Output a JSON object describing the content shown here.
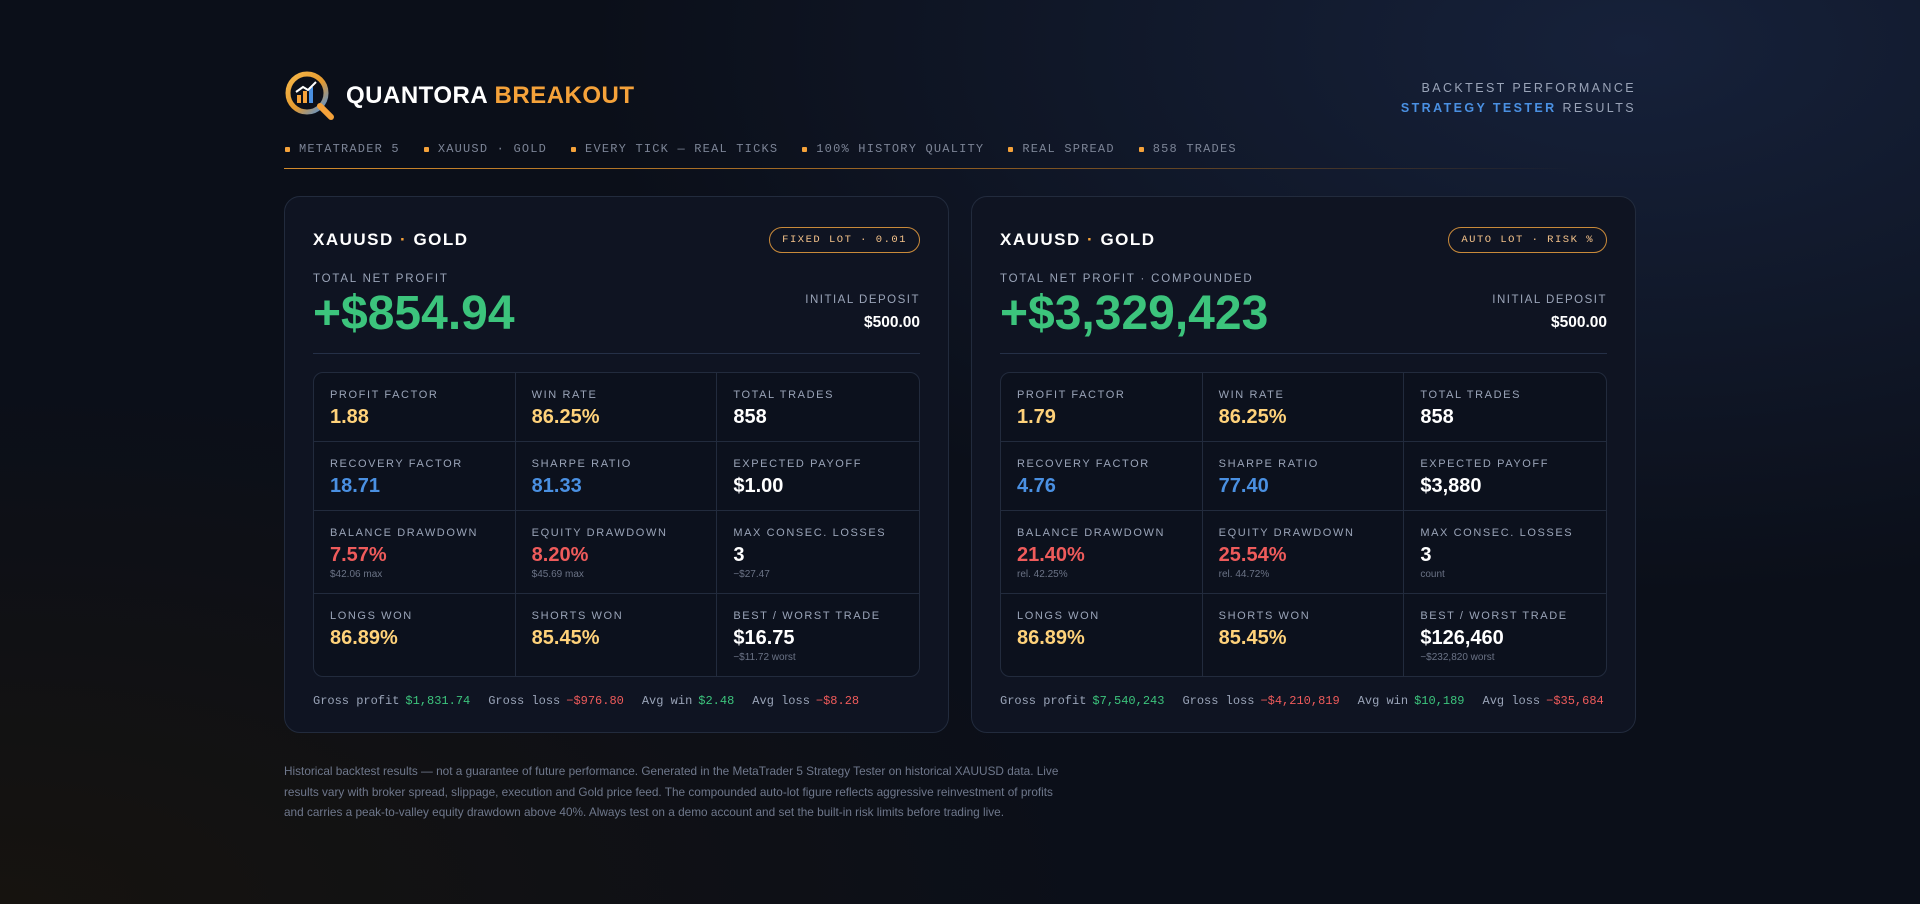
{
  "header": {
    "brand_main": "QUANTORA",
    "brand_accent": "BREAKOUT",
    "right_line1": "BACKTEST PERFORMANCE",
    "right_line2_accent": "STRATEGY TESTER",
    "right_line2_rest": "RESULTS",
    "logo_icon": "magnifier-chart-icon"
  },
  "tags": [
    "METATRADER 5",
    "XAUUSD · GOLD",
    "EVERY TICK — REAL TICKS",
    "100% HISTORY QUALITY",
    "REAL SPREAD",
    "858 TRADES"
  ],
  "colors": {
    "accent": "#f5a23a",
    "profit": "#3cc47c",
    "loss": "#ef5b5b",
    "info": "#4a90e2",
    "highlight": "#ffd27a"
  },
  "cards": [
    {
      "pair": "XAUUSD",
      "pair_rest": "GOLD",
      "badge": "FIXED LOT · 0.01",
      "profit_label": "TOTAL NET PROFIT",
      "profit_value": "+$854.94",
      "deposit_label": "INITIAL DEPOSIT",
      "deposit_value": "$500.00",
      "stats": [
        {
          "label": "PROFIT FACTOR",
          "value": "1.88",
          "sub": ""
        },
        {
          "label": "WIN RATE",
          "value": "86.25%",
          "sub": ""
        },
        {
          "label": "TOTAL TRADES",
          "value": "858",
          "sub": ""
        },
        {
          "label": "RECOVERY FACTOR",
          "value": "18.71",
          "sub": ""
        },
        {
          "label": "SHARPE RATIO",
          "value": "81.33",
          "sub": ""
        },
        {
          "label": "EXPECTED PAYOFF",
          "value": "$1.00",
          "sub": ""
        },
        {
          "label": "BALANCE DRAWDOWN",
          "value": "7.57%",
          "sub": "$42.06 max"
        },
        {
          "label": "EQUITY DRAWDOWN",
          "value": "8.20%",
          "sub": "$45.69 max"
        },
        {
          "label": "MAX CONSEC. LOSSES",
          "value": "3",
          "sub": "−$27.47"
        },
        {
          "label": "LONGS WON",
          "value": "86.89%",
          "sub": ""
        },
        {
          "label": "SHORTS WON",
          "value": "85.45%",
          "sub": ""
        },
        {
          "label": "BEST / WORST TRADE",
          "value": "$16.75",
          "sub": "−$11.72 worst"
        }
      ],
      "footer": [
        {
          "label": "Gross profit",
          "value": "$1,831.74"
        },
        {
          "label": "Gross loss",
          "value": "−$976.80"
        },
        {
          "label": "Avg win",
          "value": "$2.48"
        },
        {
          "label": "Avg loss",
          "value": "−$8.28"
        }
      ]
    },
    {
      "pair": "XAUUSD",
      "pair_rest": "GOLD",
      "badge": "AUTO LOT · RISK %",
      "profit_label": "TOTAL NET PROFIT · COMPOUNDED",
      "profit_value": "+$3,329,423",
      "deposit_label": "INITIAL DEPOSIT",
      "deposit_value": "$500.00",
      "stats": [
        {
          "label": "PROFIT FACTOR",
          "value": "1.79",
          "sub": ""
        },
        {
          "label": "WIN RATE",
          "value": "86.25%",
          "sub": ""
        },
        {
          "label": "TOTAL TRADES",
          "value": "858",
          "sub": ""
        },
        {
          "label": "RECOVERY FACTOR",
          "value": "4.76",
          "sub": ""
        },
        {
          "label": "SHARPE RATIO",
          "value": "77.40",
          "sub": ""
        },
        {
          "label": "EXPECTED PAYOFF",
          "value": "$3,880",
          "sub": ""
        },
        {
          "label": "BALANCE DRAWDOWN",
          "value": "21.40%",
          "sub": "rel. 42.25%"
        },
        {
          "label": "EQUITY DRAWDOWN",
          "value": "25.54%",
          "sub": "rel. 44.72%"
        },
        {
          "label": "MAX CONSEC. LOSSES",
          "value": "3",
          "sub": "count"
        },
        {
          "label": "LONGS WON",
          "value": "86.89%",
          "sub": ""
        },
        {
          "label": "SHORTS WON",
          "value": "85.45%",
          "sub": ""
        },
        {
          "label": "BEST / WORST TRADE",
          "value": "$126,460",
          "sub": "−$232,820 worst"
        }
      ],
      "footer": [
        {
          "label": "Gross profit",
          "value": "$7,540,243"
        },
        {
          "label": "Gross loss",
          "value": "−$4,210,819"
        },
        {
          "label": "Avg win",
          "value": "$10,189"
        },
        {
          "label": "Avg loss",
          "value": "−$35,684"
        }
      ]
    }
  ],
  "disclaimer": "Historical backtest results — not a guarantee of future performance. Generated in the MetaTrader 5 Strategy Tester on historical XAUUSD data. Live results vary with broker spread, slippage, execution and Gold price feed. The compounded auto-lot figure reflects aggressive reinvestment of profits and carries a peak-to-valley equity drawdown above 40%. Always test on a demo account and set the built-in risk limits before trading live."
}
